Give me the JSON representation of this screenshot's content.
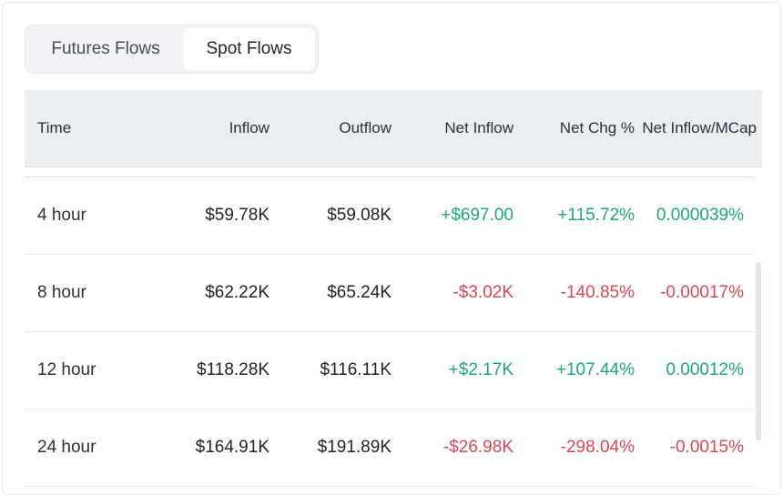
{
  "tabs": [
    {
      "label": "Futures Flows",
      "active": false
    },
    {
      "label": "Spot Flows",
      "active": true
    }
  ],
  "table": {
    "headers": [
      "Time",
      "Inflow",
      "Outflow",
      "Net Inflow",
      "Net Chg %",
      "Net Inflow/MCap"
    ],
    "rows": [
      {
        "time": "4 hour",
        "inflow": "$59.78K",
        "outflow": "$59.08K",
        "net": "+$697.00",
        "chg": "+115.72%",
        "mcap": "0.000039%",
        "sign": "pos"
      },
      {
        "time": "8 hour",
        "inflow": "$62.22K",
        "outflow": "$65.24K",
        "net": "-$3.02K",
        "chg": "-140.85%",
        "mcap": "-0.00017%",
        "sign": "neg"
      },
      {
        "time": "12 hour",
        "inflow": "$118.28K",
        "outflow": "$116.11K",
        "net": "+$2.17K",
        "chg": "+107.44%",
        "mcap": "0.00012%",
        "sign": "pos"
      },
      {
        "time": "24 hour",
        "inflow": "$164.91K",
        "outflow": "$191.89K",
        "net": "-$26.98K",
        "chg": "-298.04%",
        "mcap": "-0.0015%",
        "sign": "neg"
      }
    ]
  },
  "colors": {
    "positive": "#1ea877",
    "negative": "#d9475b"
  }
}
